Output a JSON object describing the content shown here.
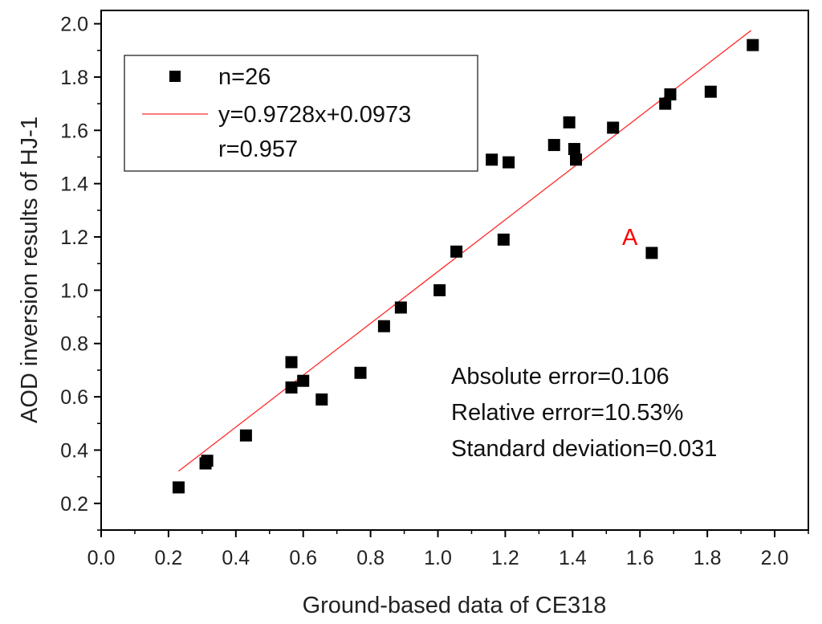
{
  "chart_data": {
    "type": "scatter",
    "title": "",
    "xlabel": "Ground-based data of CE318",
    "ylabel": "AOD inversion results of HJ-1",
    "xlim": [
      0.0,
      2.1
    ],
    "ylim": [
      0.1,
      2.05
    ],
    "x_ticks": [
      "0.0",
      "0.2",
      "0.4",
      "0.6",
      "0.8",
      "1.0",
      "1.2",
      "1.4",
      "1.6",
      "1.8",
      "2.0"
    ],
    "y_ticks": [
      "0.2",
      "0.4",
      "0.6",
      "0.8",
      "1.0",
      "1.2",
      "1.4",
      "1.6",
      "1.8",
      "2.0"
    ],
    "grid": false,
    "series": [
      {
        "name": "n=26",
        "marker": "square",
        "color": "#000000",
        "x": [
          0.23,
          0.31,
          0.315,
          0.43,
          0.565,
          0.565,
          0.6,
          0.655,
          0.77,
          0.84,
          0.89,
          1.005,
          1.055,
          1.16,
          1.195,
          1.21,
          1.345,
          1.39,
          1.405,
          1.41,
          1.52,
          1.635,
          1.675,
          1.69,
          1.81,
          1.935
        ],
        "y": [
          0.26,
          0.35,
          0.36,
          0.455,
          0.73,
          0.635,
          0.66,
          0.59,
          0.69,
          0.865,
          0.935,
          1.0,
          1.145,
          1.49,
          1.19,
          1.48,
          1.545,
          1.63,
          1.53,
          1.49,
          1.61,
          1.14,
          1.7,
          1.735,
          1.745,
          1.92
        ]
      }
    ],
    "fit_line": {
      "name": "y=0.9728x+0.0973",
      "slope": 0.9728,
      "intercept": 0.0973,
      "x_range": [
        0.23,
        1.93
      ],
      "color": "#ff2a2a"
    },
    "legend": {
      "position": "top-left",
      "entries": [
        "n=26",
        "y=0.9728x+0.0973",
        "r=0.957"
      ]
    },
    "annotations": {
      "point_label": "A",
      "point_label_color": "#ff0000",
      "point_label_x": 1.57,
      "point_label_y": 1.2,
      "stats": [
        "Absolute error=0.106",
        "Relative error=10.53%",
        "Standard deviation=0.031"
      ]
    }
  }
}
